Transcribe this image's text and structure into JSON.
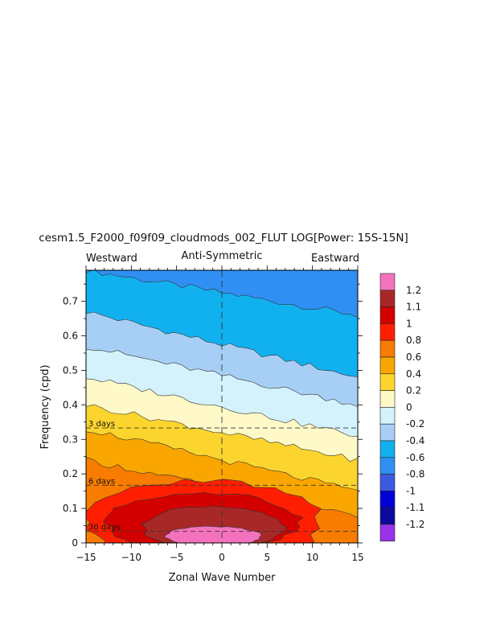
{
  "chart_data": {
    "type": "heatmap",
    "title": "cesm1.5_F2000_f09f09_cloudmods_002_FLUT LOG[Power: 15S-15N]",
    "subtitle": "Anti-Symmetric",
    "left_label": "Westward",
    "right_label": "Eastward",
    "xlabel": "Zonal Wave Number",
    "ylabel": "Frequency (cpd)",
    "xlim": [
      -15,
      15
    ],
    "ylim": [
      0,
      0.8
    ],
    "xticks": [
      {
        "v": -15,
        "label": "−15"
      },
      {
        "v": -10,
        "label": "−10"
      },
      {
        "v": -5,
        "label": "−5"
      },
      {
        "v": 0,
        "label": "0"
      },
      {
        "v": 5,
        "label": "5"
      },
      {
        "v": 10,
        "label": "10"
      },
      {
        "v": 15,
        "label": "15"
      }
    ],
    "yticks": [
      {
        "v": 0,
        "label": "0"
      },
      {
        "v": 0.1,
        "label": "0.1"
      },
      {
        "v": 0.2,
        "label": "0.2"
      },
      {
        "v": 0.3,
        "label": "0.3"
      },
      {
        "v": 0.4,
        "label": "0.4"
      },
      {
        "v": 0.5,
        "label": "0.5"
      },
      {
        "v": 0.6,
        "label": "0.6"
      },
      {
        "v": 0.7,
        "label": "0.7"
      }
    ],
    "period_lines": [
      {
        "label": "3 days",
        "freq": 0.333
      },
      {
        "label": "6 days",
        "freq": 0.167
      },
      {
        "label": "30 days",
        "freq": 0.0333
      }
    ],
    "levels": [
      -1.2,
      -1.1,
      -1,
      -0.8,
      -0.6,
      -0.4,
      -0.2,
      0,
      0.2,
      0.4,
      0.6,
      0.8,
      1,
      1.1,
      1.2
    ],
    "colorbar": [
      {
        "label": "-1.2",
        "color": "#9932e8"
      },
      {
        "label": "-1.1",
        "color": "#0c0a9e"
      },
      {
        "label": "-1",
        "color": "#0000d8"
      },
      {
        "label": "-0.8",
        "color": "#3c5ae0"
      },
      {
        "label": "-0.6",
        "color": "#2f8ff2"
      },
      {
        "label": "-0.4",
        "color": "#11b1f0"
      },
      {
        "label": "-0.2",
        "color": "#a7cff5"
      },
      {
        "label": "0",
        "color": "#d4f2fb"
      },
      {
        "label": "0.2",
        "color": "#fff9c8"
      },
      {
        "label": "0.4",
        "color": "#fbd52e"
      },
      {
        "label": "0.6",
        "color": "#f9a600"
      },
      {
        "label": "0.8",
        "color": "#f77c00"
      },
      {
        "label": "1",
        "color": "#ff1f00"
      },
      {
        "label": "1.1",
        "color": "#d40000"
      },
      {
        "label": "1.2",
        "color": "#a82828"
      },
      {
        "label": "",
        "color": "#f472bd"
      }
    ],
    "bands": [
      {
        "range": ">1.2",
        "color": "#f472bd",
        "center_k": -1,
        "center_f": 0.02,
        "half_k": 5.2,
        "half_f": 0.028
      },
      {
        "range": "1.1 to 1.2",
        "color": "#a82828",
        "center_k": -1,
        "center_f": 0.045,
        "half_k": 7.8,
        "half_f": 0.06
      },
      {
        "range": "1 to 1.1",
        "color": "#d40000",
        "center_k": -2,
        "center_f": 0.06,
        "half_k": 10.5,
        "half_f": 0.085
      },
      {
        "range": "0.8 to 1",
        "color": "#ff1f00",
        "center_k": -2,
        "center_f": 0.06,
        "half_k": 13.0,
        "half_f": 0.12
      }
    ],
    "boundaries": [
      {
        "level": 0.6,
        "left_f": 0.24,
        "right_f": 0.08
      },
      {
        "level": 0.4,
        "left_f": 0.33,
        "right_f": 0.15
      },
      {
        "level": 0.2,
        "left_f": 0.4,
        "right_f": 0.24
      },
      {
        "level": 0,
        "left_f": 0.48,
        "right_f": 0.31
      },
      {
        "level": -0.2,
        "left_f": 0.57,
        "right_f": 0.4
      },
      {
        "level": -0.4,
        "left_f": 0.67,
        "right_f": 0.48
      },
      {
        "level": -0.6,
        "left_f": 0.79,
        "right_f": 0.66
      }
    ]
  }
}
